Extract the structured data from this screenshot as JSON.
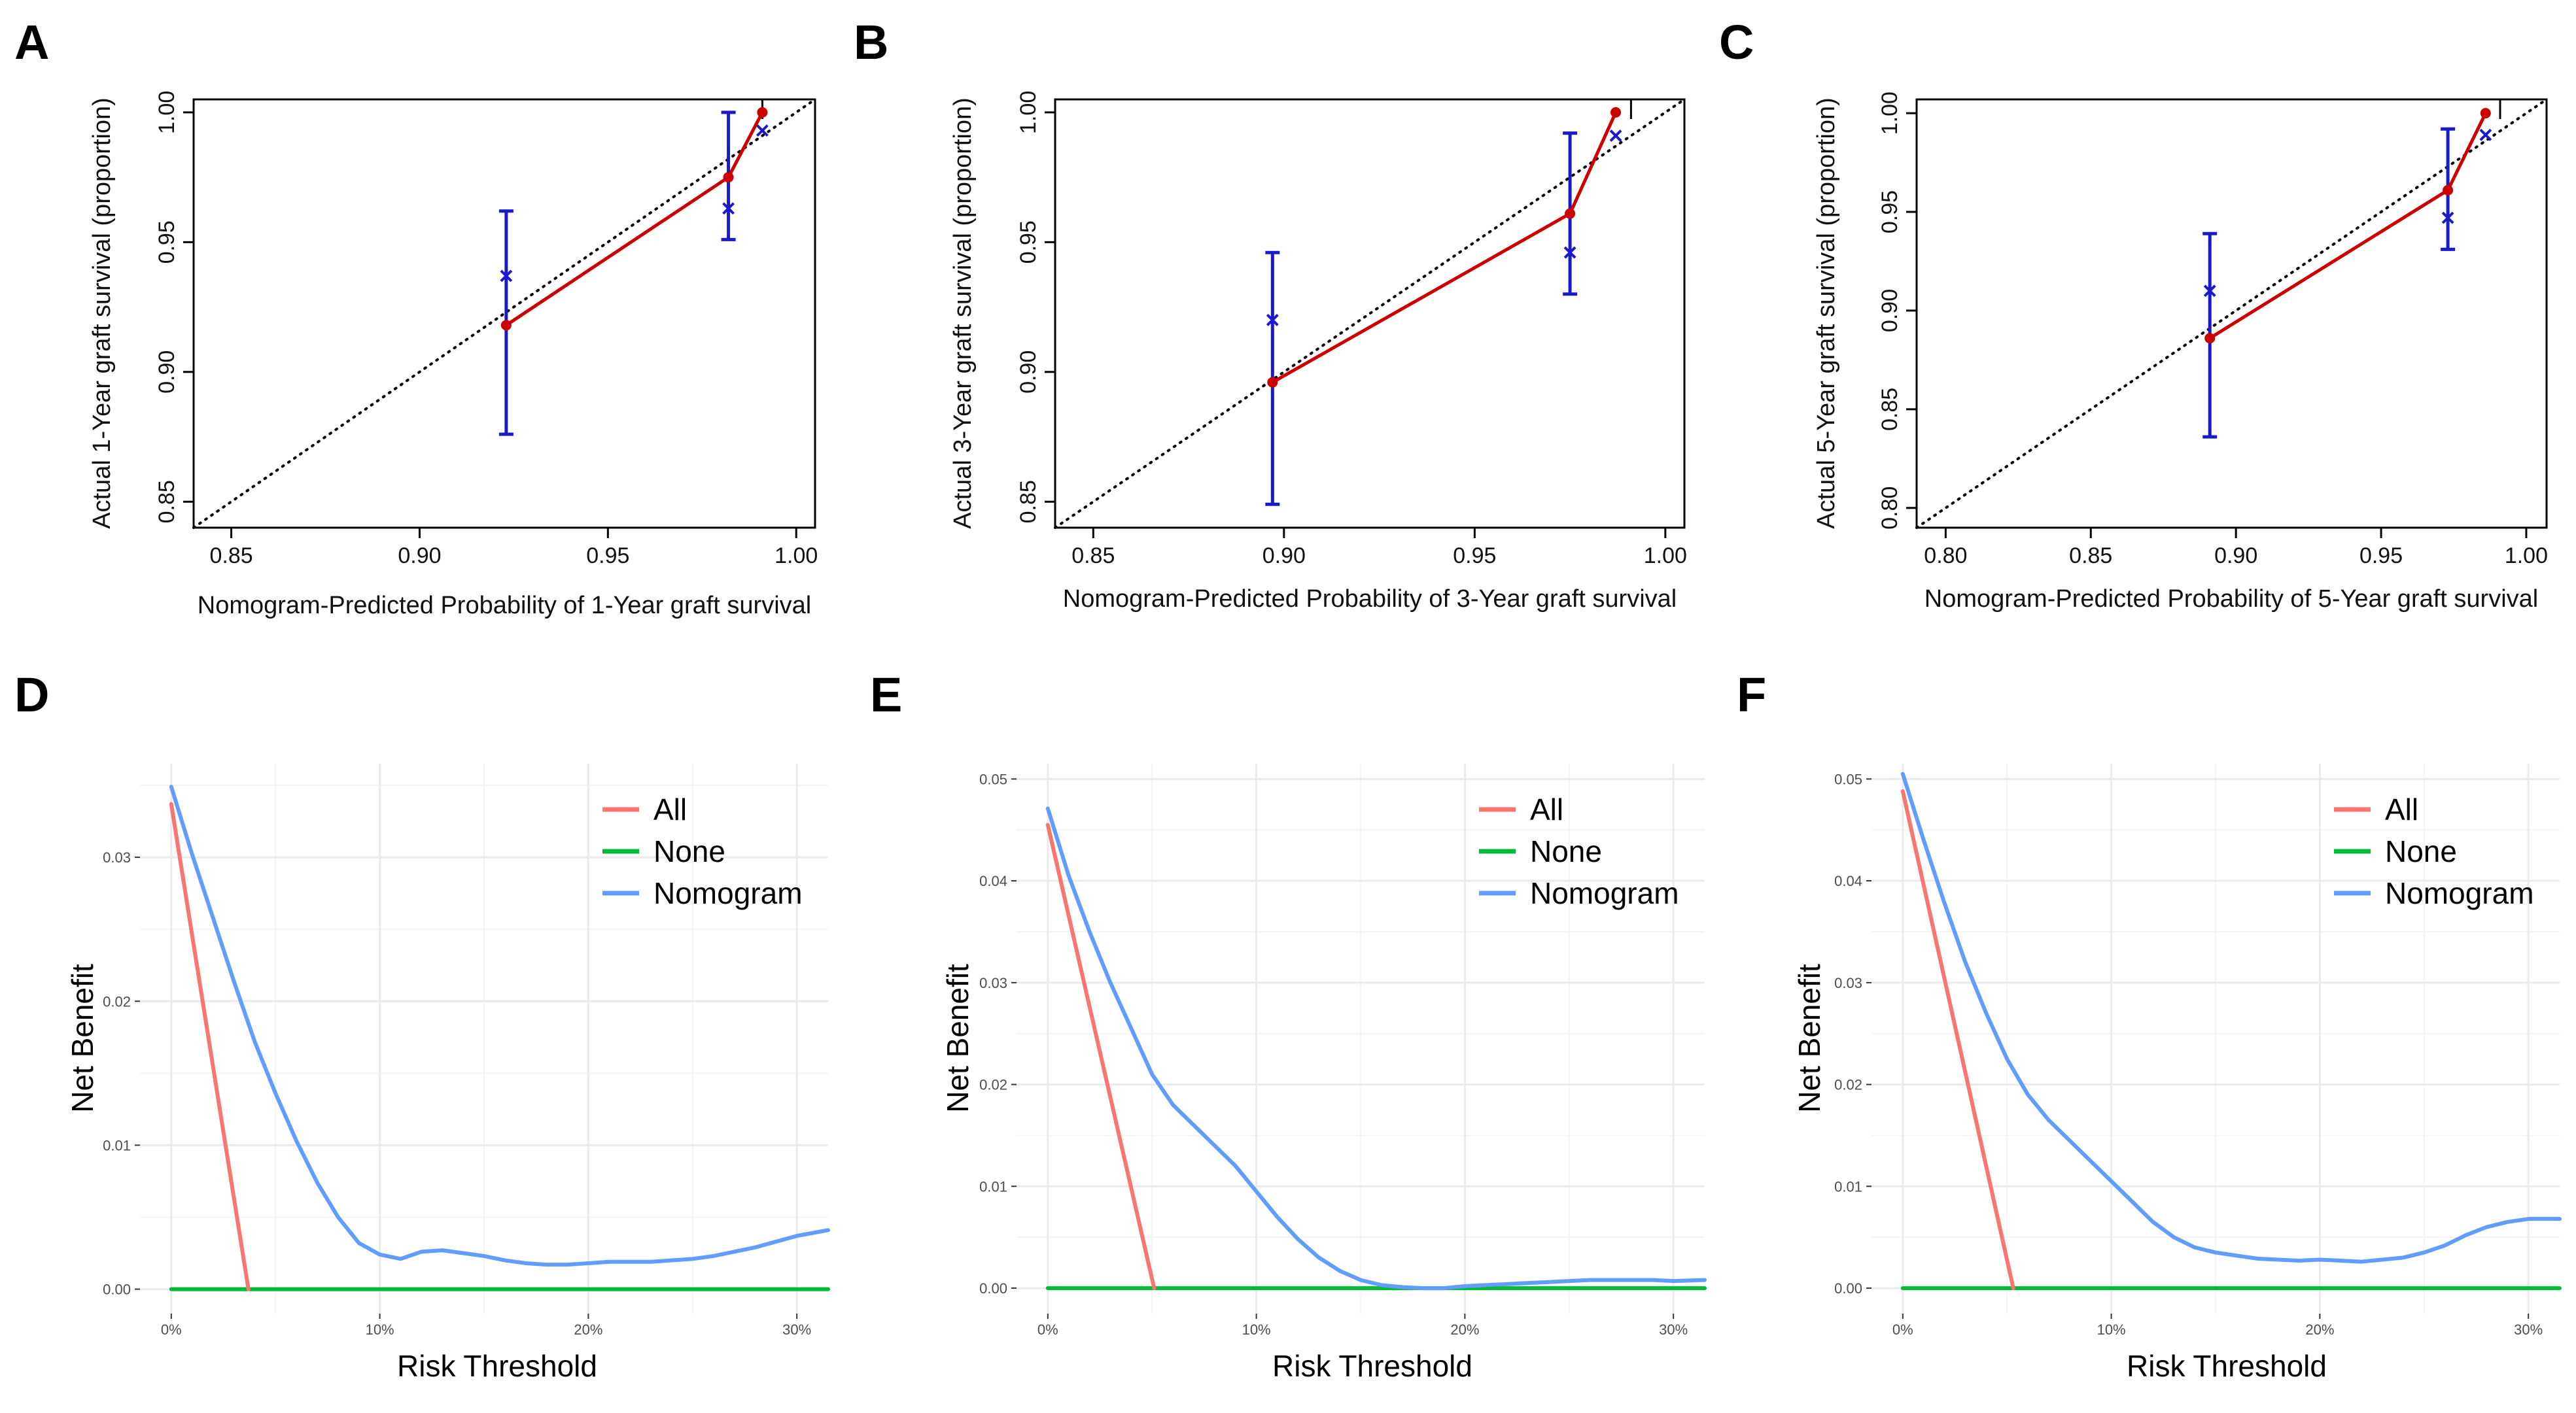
{
  "colors": {
    "calibration_line": "#cc0000",
    "calibration_points": "#cc0000",
    "observed": "#1a1acc",
    "reference": "#000000",
    "dca_all": "#f8766d",
    "dca_none": "#00ba38",
    "dca_nomogram": "#619cff",
    "grid": "#ebebeb"
  },
  "chart_data": [
    {
      "panel": "A",
      "type": "scatter",
      "subtype": "calibration",
      "xlabel": "Nomogram-Predicted Probability of 1-Year graft survival",
      "ylabel": "Actual 1-Year graft survival (proportion)",
      "xlim": [
        0.84,
        1.005
      ],
      "ylim": [
        0.84,
        1.005
      ],
      "xticks": [
        0.85,
        0.9,
        0.95,
        1.0
      ],
      "yticks": [
        0.85,
        0.9,
        0.95,
        1.0
      ],
      "tick_labels": [
        "0.85",
        "0.90",
        "0.95",
        "1.00"
      ],
      "predicted": [
        0.923,
        0.982,
        0.991
      ],
      "actual": [
        0.918,
        0.975,
        1.0
      ],
      "observed_x": [
        0.937,
        0.963,
        0.993
      ],
      "ci_low": [
        0.876,
        0.951,
        null
      ],
      "ci_high": [
        0.962,
        1.0,
        null
      ],
      "rug": [
        0.991
      ]
    },
    {
      "panel": "B",
      "type": "scatter",
      "subtype": "calibration",
      "xlabel": "Nomogram-Predicted Probability of 3-Year graft survival",
      "ylabel": "Actual 3-Year graft survival (proportion)",
      "xlim": [
        0.84,
        1.005
      ],
      "ylim": [
        0.84,
        1.005
      ],
      "xticks": [
        0.85,
        0.9,
        0.95,
        1.0
      ],
      "yticks": [
        0.85,
        0.9,
        0.95,
        1.0
      ],
      "tick_labels": [
        "0.85",
        "0.90",
        "0.95",
        "1.00"
      ],
      "predicted": [
        0.897,
        0.975,
        0.987
      ],
      "actual": [
        0.896,
        0.961,
        1.0
      ],
      "observed_x": [
        0.92,
        0.946,
        0.991
      ],
      "ci_low": [
        0.849,
        0.93,
        null
      ],
      "ci_high": [
        0.946,
        0.992,
        null
      ],
      "rug": [
        0.991
      ]
    },
    {
      "panel": "C",
      "type": "scatter",
      "subtype": "calibration",
      "xlabel": "Nomogram-Predicted Probability of 5-Year graft survival",
      "ylabel": "Actual 5-Year graft survival (proportion)",
      "xlim": [
        0.79,
        1.007
      ],
      "ylim": [
        0.79,
        1.007
      ],
      "xticks": [
        0.8,
        0.85,
        0.9,
        0.95,
        1.0
      ],
      "yticks": [
        0.8,
        0.85,
        0.9,
        0.95,
        1.0
      ],
      "tick_labels": [
        "0.80",
        "0.85",
        "0.90",
        "0.95",
        "1.00"
      ],
      "predicted": [
        0.891,
        0.973,
        0.986
      ],
      "actual": [
        0.886,
        0.961,
        1.0
      ],
      "observed_x": [
        0.91,
        0.947,
        0.989
      ],
      "ci_low": [
        0.836,
        0.931,
        null
      ],
      "ci_high": [
        0.939,
        0.992,
        null
      ],
      "rug": [
        0.991
      ]
    },
    {
      "panel": "D",
      "type": "line",
      "subtype": "decision-curve",
      "xlabel": "Risk Threshold",
      "ylabel": "Net Benefit",
      "xlim": [
        -0.015,
        0.315
      ],
      "ylim": [
        -0.0017,
        0.0365
      ],
      "xticks": [
        0,
        0.1,
        0.2,
        0.3
      ],
      "xtick_labels": [
        "0%",
        "10%",
        "20%",
        "30%"
      ],
      "yticks": [
        0,
        0.01,
        0.02,
        0.03
      ],
      "ytick_labels": [
        "0.00",
        "0.01",
        "0.02",
        "0.03"
      ],
      "legend_position": "top-right",
      "series": [
        {
          "name": "All",
          "x": [
            0,
            0.037
          ],
          "y": [
            0.0337,
            0
          ]
        },
        {
          "name": "None",
          "x": [
            0,
            0.315
          ],
          "y": [
            0,
            0
          ]
        },
        {
          "name": "Nomogram",
          "x": [
            0,
            0.01,
            0.02,
            0.03,
            0.04,
            0.05,
            0.06,
            0.07,
            0.08,
            0.09,
            0.1,
            0.11,
            0.12,
            0.13,
            0.14,
            0.15,
            0.16,
            0.17,
            0.18,
            0.19,
            0.2,
            0.21,
            0.22,
            0.23,
            0.24,
            0.25,
            0.26,
            0.27,
            0.28,
            0.29,
            0.3,
            0.315
          ],
          "y": [
            0.0349,
            0.0302,
            0.0258,
            0.0214,
            0.0172,
            0.0136,
            0.0103,
            0.0074,
            0.005,
            0.0032,
            0.0024,
            0.0021,
            0.0026,
            0.0027,
            0.0025,
            0.0023,
            0.002,
            0.0018,
            0.0017,
            0.0017,
            0.0018,
            0.0019,
            0.0019,
            0.0019,
            0.002,
            0.0021,
            0.0023,
            0.0026,
            0.0029,
            0.0033,
            0.0037,
            0.0041
          ]
        }
      ]
    },
    {
      "panel": "E",
      "type": "line",
      "subtype": "decision-curve",
      "xlabel": "Risk Threshold",
      "ylabel": "Net Benefit",
      "xlim": [
        -0.015,
        0.315
      ],
      "ylim": [
        -0.0025,
        0.0515
      ],
      "xticks": [
        0,
        0.1,
        0.2,
        0.3
      ],
      "xtick_labels": [
        "0%",
        "10%",
        "20%",
        "30%"
      ],
      "yticks": [
        0,
        0.01,
        0.02,
        0.03,
        0.04,
        0.05
      ],
      "ytick_labels": [
        "0.00",
        "0.01",
        "0.02",
        "0.03",
        "0.04",
        "0.05"
      ],
      "legend_position": "top-right",
      "series": [
        {
          "name": "All",
          "x": [
            0,
            0.051
          ],
          "y": [
            0.0455,
            0
          ]
        },
        {
          "name": "None",
          "x": [
            0,
            0.315
          ],
          "y": [
            0,
            0
          ]
        },
        {
          "name": "Nomogram",
          "x": [
            0,
            0.01,
            0.02,
            0.03,
            0.04,
            0.05,
            0.06,
            0.07,
            0.08,
            0.09,
            0.1,
            0.11,
            0.12,
            0.13,
            0.14,
            0.15,
            0.16,
            0.17,
            0.18,
            0.19,
            0.2,
            0.21,
            0.22,
            0.23,
            0.24,
            0.25,
            0.26,
            0.27,
            0.28,
            0.29,
            0.3,
            0.315
          ],
          "y": [
            0.0471,
            0.0405,
            0.035,
            0.03,
            0.0255,
            0.021,
            0.018,
            0.016,
            0.014,
            0.012,
            0.0095,
            0.007,
            0.0048,
            0.003,
            0.0017,
            0.0008,
            0.0003,
            0.0001,
            0.0,
            0.0,
            0.0002,
            0.0003,
            0.0004,
            0.0005,
            0.0006,
            0.0007,
            0.0008,
            0.0008,
            0.0008,
            0.0008,
            0.0007,
            0.0008
          ]
        }
      ]
    },
    {
      "panel": "F",
      "type": "line",
      "subtype": "decision-curve",
      "xlabel": "Risk Threshold",
      "ylabel": "Net Benefit",
      "xlim": [
        -0.015,
        0.315
      ],
      "ylim": [
        -0.0025,
        0.0515
      ],
      "xticks": [
        0,
        0.1,
        0.2,
        0.3
      ],
      "xtick_labels": [
        "0%",
        "10%",
        "20%",
        "30%"
      ],
      "yticks": [
        0,
        0.01,
        0.02,
        0.03,
        0.04,
        0.05
      ],
      "ytick_labels": [
        "0.00",
        "0.01",
        "0.02",
        "0.03",
        "0.04",
        "0.05"
      ],
      "legend_position": "top-right",
      "series": [
        {
          "name": "All",
          "x": [
            0,
            0.053
          ],
          "y": [
            0.0488,
            0
          ]
        },
        {
          "name": "None",
          "x": [
            0,
            0.315
          ],
          "y": [
            0,
            0
          ]
        },
        {
          "name": "Nomogram",
          "x": [
            0,
            0.01,
            0.02,
            0.03,
            0.04,
            0.05,
            0.06,
            0.07,
            0.08,
            0.09,
            0.1,
            0.11,
            0.12,
            0.13,
            0.14,
            0.15,
            0.16,
            0.17,
            0.18,
            0.19,
            0.2,
            0.21,
            0.22,
            0.23,
            0.24,
            0.25,
            0.26,
            0.27,
            0.28,
            0.29,
            0.3,
            0.315
          ],
          "y": [
            0.0505,
            0.044,
            0.0378,
            0.032,
            0.027,
            0.0225,
            0.019,
            0.0165,
            0.0145,
            0.0125,
            0.0105,
            0.0085,
            0.0065,
            0.005,
            0.004,
            0.0035,
            0.0032,
            0.0029,
            0.0028,
            0.0027,
            0.0028,
            0.0027,
            0.0026,
            0.0028,
            0.003,
            0.0035,
            0.0042,
            0.0052,
            0.006,
            0.0065,
            0.0068,
            0.0068
          ]
        }
      ]
    }
  ]
}
